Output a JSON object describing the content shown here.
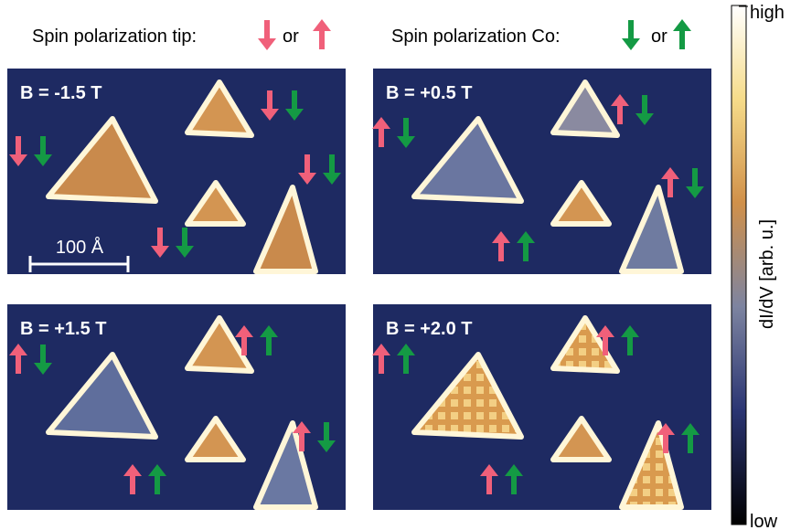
{
  "header": {
    "tip": {
      "label": "Spin polarization tip:",
      "or": "or"
    },
    "co": {
      "label": "Spin polarization Co:",
      "or": "or"
    }
  },
  "panels": [
    {
      "label": "B = -1.5 T"
    },
    {
      "label": "B = +0.5 T"
    },
    {
      "label": "B = +1.5 T"
    },
    {
      "label": "B = +2.0 T"
    }
  ],
  "scale_bar": "100 Å",
  "colorbar": {
    "high": "high",
    "low": "low",
    "label": "dI/dV [arb. u.]"
  }
}
